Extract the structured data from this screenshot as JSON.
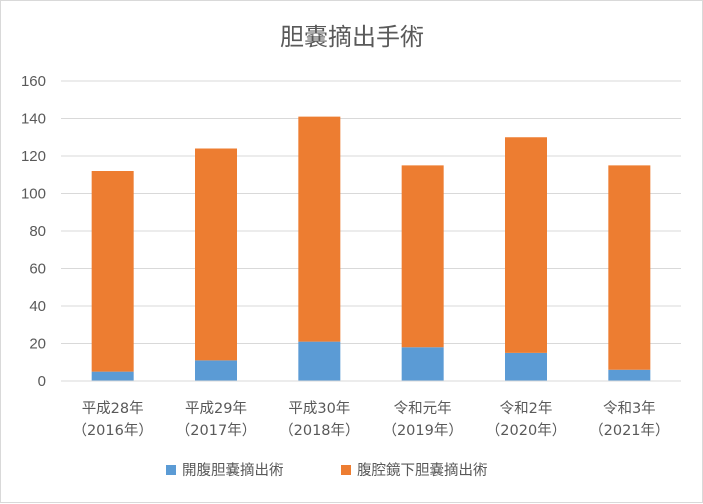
{
  "chart_data": {
    "type": "bar",
    "stacked": true,
    "title": "胆嚢摘出手術",
    "categories": [
      [
        "平成28年",
        "（2016年）"
      ],
      [
        "平成29年",
        "（2017年）"
      ],
      [
        "平成30年",
        "（2018年）"
      ],
      [
        "令和元年",
        "（2019年）"
      ],
      [
        "令和2年",
        "（2020年）"
      ],
      [
        "令和3年",
        "（2021年）"
      ]
    ],
    "series": [
      {
        "name": "開腹胆嚢摘出術",
        "color": "#5b9bd5",
        "values": [
          5,
          11,
          21,
          18,
          15,
          6
        ]
      },
      {
        "name": "腹腔鏡下胆嚢摘出術",
        "color": "#ed7d31",
        "values": [
          107,
          113,
          120,
          97,
          115,
          109
        ]
      }
    ],
    "ylim": [
      0,
      160
    ],
    "yticks": [
      0,
      20,
      40,
      60,
      80,
      100,
      120,
      140,
      160
    ],
    "grid": true,
    "gridColor": "#d9d9d9",
    "legend_position": "bottom"
  }
}
